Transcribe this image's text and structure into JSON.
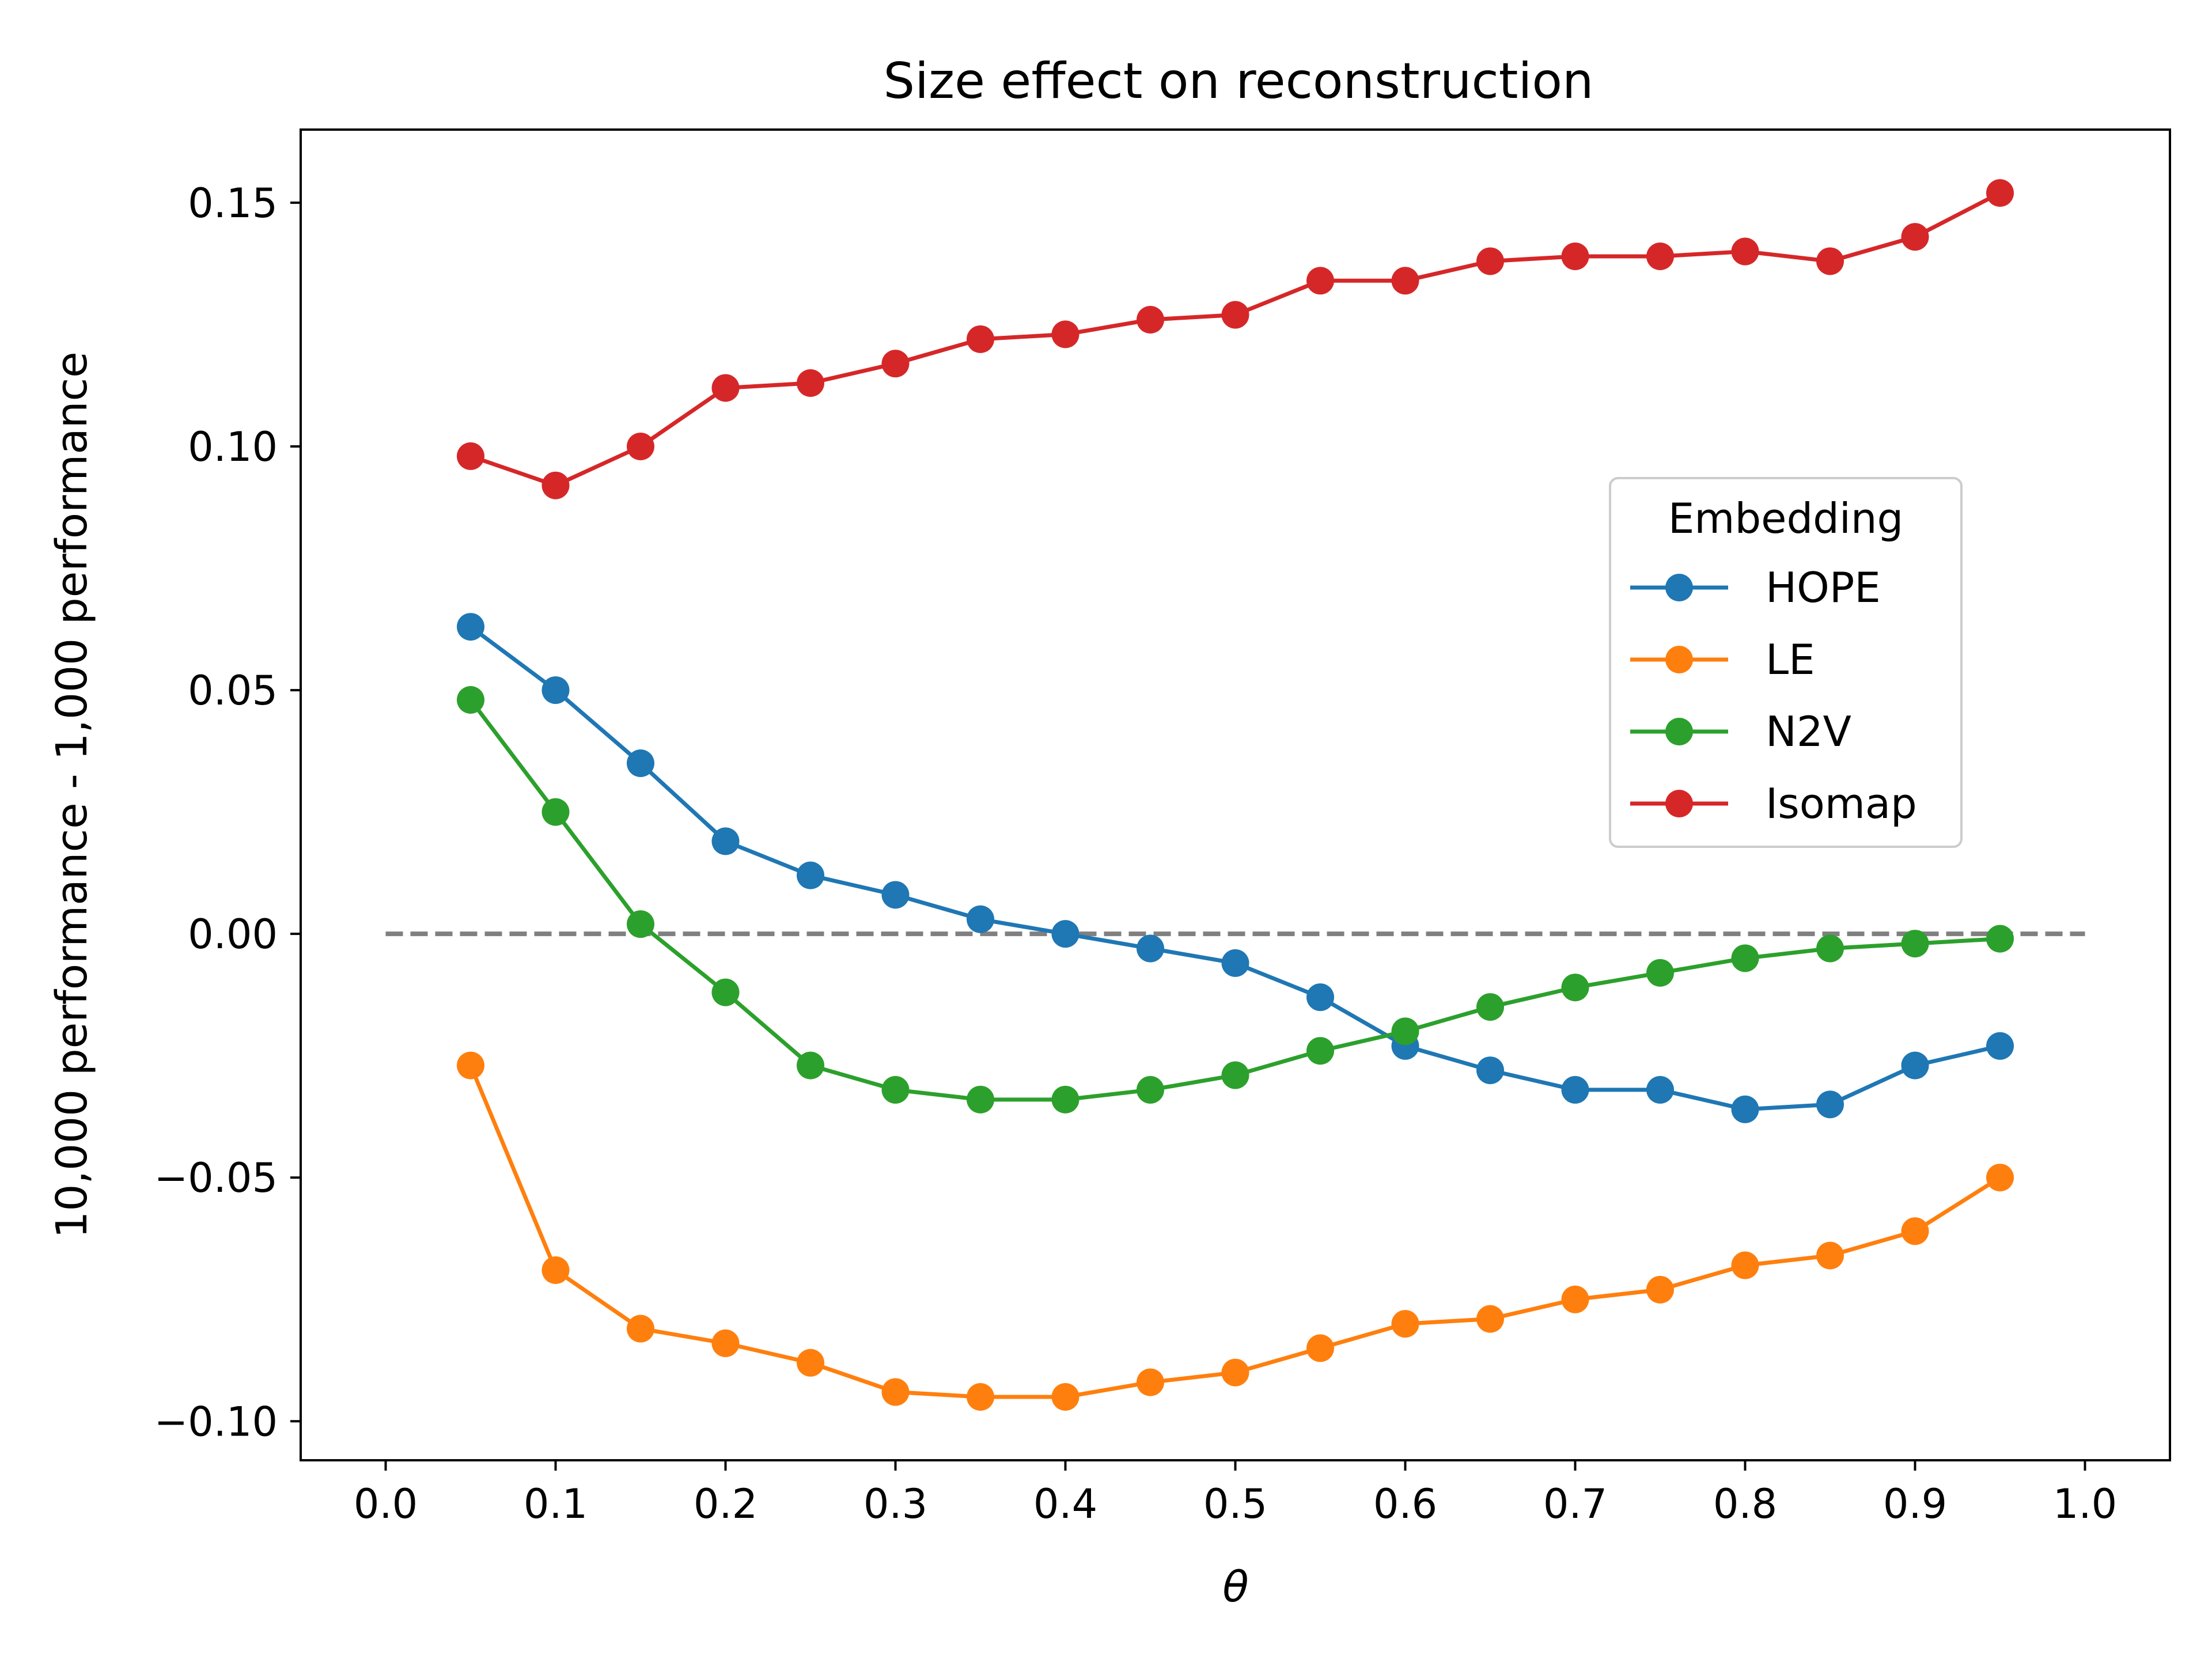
{
  "chart_data": {
    "type": "line",
    "title": "Size effect on reconstruction",
    "xlabel": "θ",
    "ylabel": "10,000 performance - 1,000 performance",
    "xlim": [
      -0.05,
      1.05
    ],
    "ylim": [
      -0.108,
      0.165
    ],
    "x_ticks": [
      0.0,
      0.1,
      0.2,
      0.3,
      0.4,
      0.5,
      0.6,
      0.7,
      0.8,
      0.9,
      1.0
    ],
    "x_tick_labels": [
      "0.0",
      "0.1",
      "0.2",
      "0.3",
      "0.4",
      "0.5",
      "0.6",
      "0.7",
      "0.8",
      "0.9",
      "1.0"
    ],
    "y_ticks": [
      -0.1,
      -0.05,
      0.0,
      0.05,
      0.1,
      0.15
    ],
    "y_tick_labels": [
      "−0.10",
      "−0.05",
      "0.00",
      "0.05",
      "0.10",
      "0.15"
    ],
    "grid": false,
    "reference_line": {
      "y": 0.0,
      "x_range": [
        0.0,
        1.0
      ],
      "style": "dashed",
      "color": "#808080"
    },
    "legend": {
      "title": "Embedding",
      "placement": "center-right"
    },
    "x": [
      0.05,
      0.1,
      0.15,
      0.2,
      0.25,
      0.3,
      0.35,
      0.4,
      0.45,
      0.5,
      0.55,
      0.6,
      0.65,
      0.7,
      0.75,
      0.8,
      0.85,
      0.9,
      0.95
    ],
    "series": [
      {
        "name": "HOPE",
        "color": "#1f77b4",
        "values": [
          0.063,
          0.05,
          0.035,
          0.019,
          0.012,
          0.008,
          0.003,
          0.0,
          -0.003,
          -0.006,
          -0.013,
          -0.023,
          -0.028,
          -0.032,
          -0.032,
          -0.036,
          -0.035,
          -0.027,
          -0.023
        ]
      },
      {
        "name": "LE",
        "color": "#ff7f0e",
        "values": [
          -0.027,
          -0.069,
          -0.081,
          -0.084,
          -0.088,
          -0.094,
          -0.095,
          -0.095,
          -0.092,
          -0.09,
          -0.085,
          -0.08,
          -0.079,
          -0.075,
          -0.073,
          -0.068,
          -0.066,
          -0.061,
          -0.05
        ]
      },
      {
        "name": "N2V",
        "color": "#2ca02c",
        "values": [
          0.048,
          0.025,
          0.002,
          -0.012,
          -0.027,
          -0.032,
          -0.034,
          -0.034,
          -0.032,
          -0.029,
          -0.024,
          -0.02,
          -0.015,
          -0.011,
          -0.008,
          -0.005,
          -0.003,
          -0.002,
          -0.001
        ]
      },
      {
        "name": "Isomap",
        "color": "#d62728",
        "values": [
          0.098,
          0.092,
          0.1,
          0.112,
          0.113,
          0.117,
          0.122,
          0.123,
          0.126,
          0.127,
          0.134,
          0.134,
          0.138,
          0.139,
          0.139,
          0.14,
          0.138,
          0.143,
          0.152
        ]
      }
    ]
  }
}
